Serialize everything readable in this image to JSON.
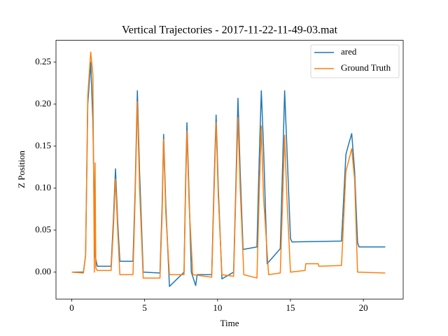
{
  "chart_data": {
    "type": "line",
    "title": "Vertical Trajectories - 2017-11-22-11-49-03.mat",
    "x_label": "Time",
    "y_label": "Z Position",
    "xlim": [
      -1.08,
      22.73
    ],
    "ylim": [
      -0.032,
      0.276
    ],
    "xticks": [
      0,
      5,
      10,
      15,
      20
    ],
    "yticks": [
      {
        "value": 0,
        "label": "0.00"
      },
      {
        "value": 0.05,
        "label": "0.05"
      },
      {
        "value": 0.1,
        "label": "0.10"
      },
      {
        "value": 0.15,
        "label": "0.15"
      },
      {
        "value": 0.2,
        "label": "0.20"
      },
      {
        "value": 0.25,
        "label": "0.25"
      }
    ],
    "legend": "upper right",
    "series": [
      {
        "name": "ared",
        "color": "#1f77b4",
        "x": [
          0,
          0.8,
          0.95,
          1.1,
          1.3,
          1.45,
          1.6,
          1.75,
          2.7,
          2.85,
          3.0,
          3.15,
          3.3,
          4.2,
          4.35,
          4.5,
          4.65,
          4.9,
          6.05,
          6.2,
          6.3,
          6.45,
          6.7,
          7.7,
          7.8,
          7.9,
          8.05,
          8.2,
          8.5,
          8.6,
          9.6,
          9.75,
          9.9,
          10.05,
          10.3,
          11.1,
          11.25,
          11.4,
          11.55,
          11.75,
          12.7,
          12.85,
          13.0,
          13.15,
          13.4,
          14.3,
          14.45,
          14.6,
          14.75,
          15.0,
          15.1,
          18.5,
          18.8,
          18.95,
          19.2,
          19.4,
          19.6,
          19.7,
          21.5
        ],
        "values": [
          0,
          0,
          0.02,
          0.2,
          0.25,
          0.18,
          0.02,
          0.007,
          0.007,
          0.06,
          0.123,
          0.06,
          0.013,
          0.013,
          0.1,
          0.216,
          0.12,
          0.0,
          -0.001,
          0.08,
          0.164,
          0.08,
          -0.017,
          0,
          0.1,
          0.178,
          0.09,
          0,
          -0.016,
          -0.003,
          -0.003,
          0.1,
          0.187,
          0.1,
          -0.008,
          0,
          0.1,
          0.207,
          0.12,
          0.027,
          0.03,
          0.13,
          0.216,
          0.15,
          0.01,
          0.028,
          0.12,
          0.216,
          0.15,
          0.04,
          0.036,
          0.037,
          0.14,
          0.15,
          0.165,
          0.12,
          0.035,
          0.03,
          0.03
        ]
      },
      {
        "name": "Ground Truth",
        "color": "#ff7f0e",
        "x": [
          0,
          0.8,
          0.95,
          1.1,
          1.3,
          1.45,
          1.55,
          1.6,
          1.65,
          1.75,
          2.7,
          2.85,
          3.0,
          3.15,
          3.3,
          4.2,
          4.35,
          4.5,
          4.65,
          4.9,
          6.05,
          6.2,
          6.3,
          6.45,
          6.7,
          7.7,
          7.8,
          7.9,
          8.05,
          8.3,
          9.6,
          9.75,
          9.9,
          10.05,
          10.3,
          11.1,
          11.25,
          11.4,
          11.55,
          11.8,
          12.7,
          12.85,
          13.0,
          13.15,
          13.5,
          14.3,
          14.45,
          14.6,
          14.75,
          15.0,
          16.0,
          16.05,
          16.9,
          16.95,
          18.5,
          18.8,
          18.95,
          19.2,
          19.4,
          19.6,
          21.5
        ],
        "values": [
          0,
          -0.001,
          0.02,
          0.21,
          0.262,
          0.235,
          0.0,
          0.13,
          0.005,
          0.002,
          0.002,
          0.05,
          0.111,
          0.05,
          -0.003,
          -0.003,
          0.09,
          0.203,
          0.1,
          -0.007,
          -0.007,
          0.07,
          0.158,
          0.07,
          -0.003,
          -0.003,
          0.09,
          0.168,
          0.08,
          -0.003,
          -0.006,
          0.09,
          0.178,
          0.09,
          -0.003,
          -0.005,
          0.09,
          0.184,
          0.1,
          -0.003,
          -0.007,
          0.09,
          0.174,
          0.09,
          -0.003,
          -0.001,
          0.08,
          0.163,
          0.09,
          0.0,
          0.002,
          0.01,
          0.01,
          0.007,
          0.008,
          0.12,
          0.13,
          0.147,
          0.11,
          0.0,
          -0.001
        ]
      }
    ]
  }
}
